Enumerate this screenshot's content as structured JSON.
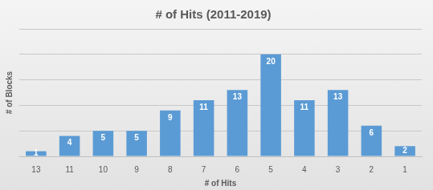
{
  "chart_data": {
    "type": "bar",
    "title": "# of Hits (2011-2019)",
    "x_label": "# of Hits",
    "y_label": "# of Blocks",
    "categories": [
      "13",
      "11",
      "10",
      "9",
      "8",
      "7",
      "6",
      "5",
      "4",
      "3",
      "2",
      "1"
    ],
    "values": [
      1,
      4,
      5,
      5,
      9,
      11,
      13,
      20,
      11,
      13,
      6,
      2
    ],
    "color": "#5b9bd5",
    "ylim": [
      0,
      25
    ],
    "yticks": [
      0,
      5,
      10,
      15,
      20,
      25
    ],
    "grid": true,
    "data_labels": true,
    "tick_labels": "x"
  }
}
